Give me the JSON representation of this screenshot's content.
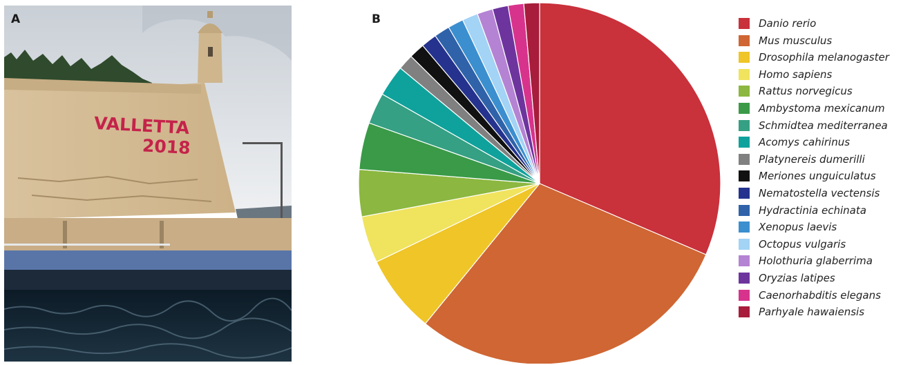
{
  "panels": {
    "a_label": "A",
    "b_label": "B"
  },
  "photo": {
    "sign_line1": "VALLETTA",
    "sign_line2": "2018",
    "colors": {
      "sky": "#dfe3e8",
      "fortress": "#d9c19a",
      "sign": "#c4234a",
      "sea": "#0e1f2c"
    }
  },
  "chart_data": {
    "type": "pie",
    "title": "",
    "legend_position": "right",
    "slices": [
      {
        "label": "Danio rerio",
        "value": 31.5,
        "color": "#c9313b"
      },
      {
        "label": "Mus musculus",
        "value": 29.5,
        "color": "#cf6633"
      },
      {
        "label": "Drosophila melanogaster",
        "value": 7.0,
        "color": "#efc528"
      },
      {
        "label": "Homo sapiens",
        "value": 4.2,
        "color": "#f0e35e"
      },
      {
        "label": "Rattus norvegicus",
        "value": 4.2,
        "color": "#8cb740"
      },
      {
        "label": "Ambystoma mexicanum",
        "value": 4.2,
        "color": "#3a9a47"
      },
      {
        "label": "Schmidtea mediterranea",
        "value": 2.8,
        "color": "#35a083"
      },
      {
        "label": "Acomys cahirinus",
        "value": 2.8,
        "color": "#0fa29c"
      },
      {
        "label": "Platynereis dumerilli",
        "value": 1.4,
        "color": "#808080"
      },
      {
        "label": "Meriones unguiculatus",
        "value": 1.4,
        "color": "#111111"
      },
      {
        "label": "Nematostella vectensis",
        "value": 1.4,
        "color": "#25338e"
      },
      {
        "label": "Hydractinia echinata",
        "value": 1.4,
        "color": "#2f62a9"
      },
      {
        "label": "Xenopus laevis",
        "value": 1.4,
        "color": "#3b8fcf"
      },
      {
        "label": "Octopus vulgaris",
        "value": 1.4,
        "color": "#a3d3f5"
      },
      {
        "label": "Holothuria glaberrima",
        "value": 1.4,
        "color": "#b583d3"
      },
      {
        "label": "Oryzias latipes",
        "value": 1.4,
        "color": "#6d349e"
      },
      {
        "label": "Caenorhabditis elegans",
        "value": 1.4,
        "color": "#d8338c"
      },
      {
        "label": "Parhyale hawaiensis",
        "value": 1.4,
        "color": "#a81d3b"
      }
    ]
  }
}
